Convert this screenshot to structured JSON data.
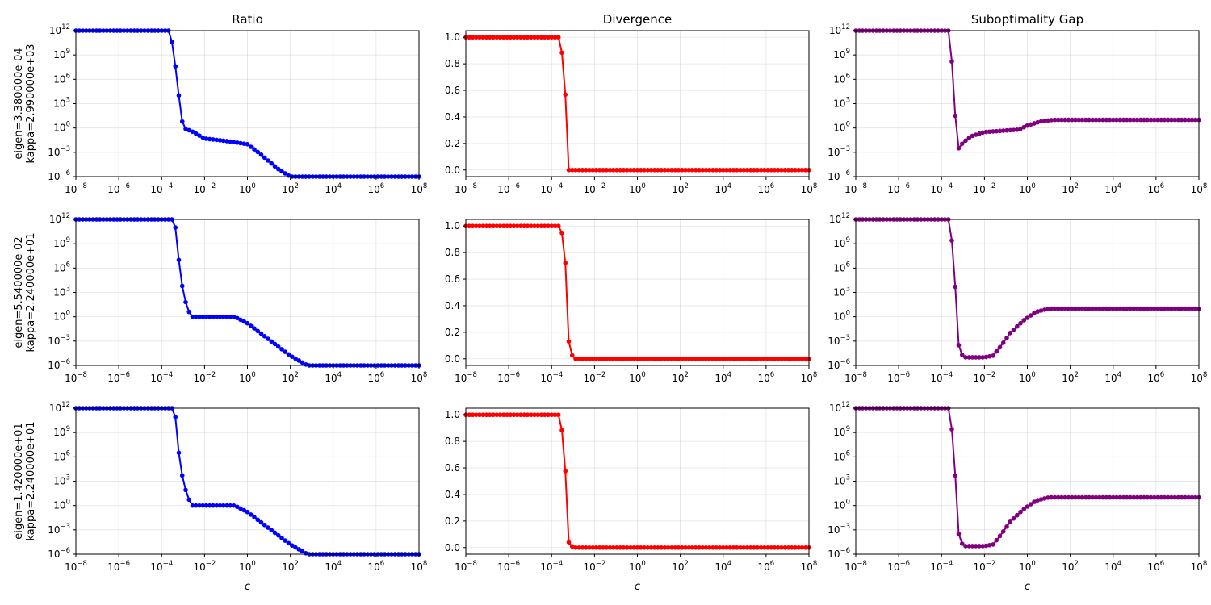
{
  "chart_data": {
    "type": "line",
    "layout": "3x3 grid of subplots",
    "x_label": "c",
    "x_scale": "log",
    "x_range": [
      1e-08,
      100000000.0
    ],
    "x_ticks": [
      "10^-8",
      "10^-6",
      "10^-4",
      "10^-2",
      "10^0",
      "10^2",
      "10^4",
      "10^6",
      "10^8"
    ],
    "grid": true,
    "markers": "filled circles",
    "x_points_per_series": 101,
    "columns": [
      {
        "title": "Ratio",
        "y_scale": "log",
        "y_range": [
          1e-06,
          1000000000000.0
        ],
        "y_ticks": [
          "10^-6",
          "10^-3",
          "10^0",
          "10^3",
          "10^6",
          "10^9",
          "10^12"
        ],
        "color": "#0000ff"
      },
      {
        "title": "Divergence",
        "y_scale": "linear",
        "y_range": [
          -0.05,
          1.05
        ],
        "y_ticks": [
          "0.0",
          "0.2",
          "0.4",
          "0.6",
          "0.8",
          "1.0"
        ],
        "color": "#ff0000"
      },
      {
        "title": "Suboptimality Gap",
        "y_scale": "log",
        "y_range": [
          1e-06,
          1000000000000.0
        ],
        "y_ticks": [
          "10^-6",
          "10^-3",
          "10^0",
          "10^3",
          "10^6",
          "10^9",
          "10^12"
        ],
        "color": "#800080"
      }
    ],
    "rows": [
      {
        "ylabel_line1": "eigen=3.380000e-04",
        "ylabel_line2": "kappa=2.990000e+03",
        "ratio_log10": [
          [
            -8,
            12
          ],
          [
            -3.6,
            12
          ],
          [
            -3.4,
            8.5
          ],
          [
            -3.2,
            4
          ],
          [
            -3.0,
            0
          ],
          [
            -2.6,
            -0.4
          ],
          [
            -2.0,
            -1.3
          ],
          [
            -1.0,
            -1.6
          ],
          [
            0,
            -2
          ],
          [
            0.6,
            -3.2
          ],
          [
            1.4,
            -5
          ],
          [
            2.0,
            -6
          ],
          [
            8,
            -6
          ]
        ],
        "divergence": [
          [
            -8,
            1
          ],
          [
            -3.6,
            1
          ],
          [
            -3.4,
            0.71
          ],
          [
            -3.2,
            0
          ],
          [
            8,
            0
          ]
        ],
        "gap_log10": [
          [
            -8,
            12
          ],
          [
            -3.6,
            12
          ],
          [
            -3.4,
            2.5
          ],
          [
            -3.2,
            -2.5
          ],
          [
            -3.0,
            -1.8
          ],
          [
            -2.6,
            -1
          ],
          [
            -2.0,
            -0.5
          ],
          [
            -0.4,
            -0.2
          ],
          [
            0,
            0.3
          ],
          [
            0.6,
            0.8
          ],
          [
            1.2,
            1
          ],
          [
            8,
            1
          ]
        ]
      },
      {
        "ylabel_line1": "eigen=5.540000e-02",
        "ylabel_line2": "kappa=2.240000e+01",
        "ratio_log10": [
          [
            -8,
            12
          ],
          [
            -3.4,
            12
          ],
          [
            -3.2,
            7
          ],
          [
            -3.0,
            3
          ],
          [
            -2.8,
            1
          ],
          [
            -2.6,
            0
          ],
          [
            -2.2,
            0
          ],
          [
            -0.6,
            0
          ],
          [
            0,
            -0.8
          ],
          [
            1.0,
            -2.8
          ],
          [
            2.0,
            -4.8
          ],
          [
            2.8,
            -6
          ],
          [
            8,
            -6
          ]
        ],
        "divergence": [
          [
            -8,
            1
          ],
          [
            -3.6,
            1
          ],
          [
            -3.4,
            0.87
          ],
          [
            -3.2,
            0.13
          ],
          [
            -3.0,
            0
          ],
          [
            8,
            0
          ]
        ],
        "gap_log10": [
          [
            -8,
            12
          ],
          [
            -3.6,
            12
          ],
          [
            -3.4,
            5.5
          ],
          [
            -3.2,
            -3.5
          ],
          [
            -3.0,
            -5
          ],
          [
            -2.0,
            -5
          ],
          [
            -1.6,
            -4.8
          ],
          [
            -1.2,
            -3.5
          ],
          [
            -0.8,
            -2
          ],
          [
            -0.2,
            -0.5
          ],
          [
            0.4,
            0.6
          ],
          [
            1.0,
            1
          ],
          [
            8,
            1
          ]
        ]
      },
      {
        "ylabel_line1": "eigen=1.420000e+01",
        "ylabel_line2": "kappa=2.240000e+01",
        "ratio_log10": [
          [
            -8,
            12
          ],
          [
            -3.4,
            12
          ],
          [
            -3.2,
            6.5
          ],
          [
            -3.0,
            3
          ],
          [
            -2.8,
            1.2
          ],
          [
            -2.6,
            0
          ],
          [
            -2.2,
            0
          ],
          [
            -0.6,
            0
          ],
          [
            0,
            -0.8
          ],
          [
            1.0,
            -2.8
          ],
          [
            2.0,
            -4.8
          ],
          [
            2.8,
            -6
          ],
          [
            8,
            -6
          ]
        ],
        "divergence": [
          [
            -8,
            1
          ],
          [
            -3.6,
            1
          ],
          [
            -3.4,
            0.71
          ],
          [
            -3.2,
            0.04
          ],
          [
            -3.0,
            0
          ],
          [
            8,
            0
          ]
        ],
        "gap_log10": [
          [
            -8,
            12
          ],
          [
            -3.6,
            12
          ],
          [
            -3.4,
            5.5
          ],
          [
            -3.2,
            -3.5
          ],
          [
            -3.0,
            -5
          ],
          [
            -2.0,
            -5
          ],
          [
            -1.6,
            -4.8
          ],
          [
            -1.2,
            -3.5
          ],
          [
            -0.8,
            -2
          ],
          [
            -0.2,
            -0.5
          ],
          [
            0.4,
            0.6
          ],
          [
            1.0,
            1
          ],
          [
            8,
            1
          ]
        ]
      }
    ]
  }
}
